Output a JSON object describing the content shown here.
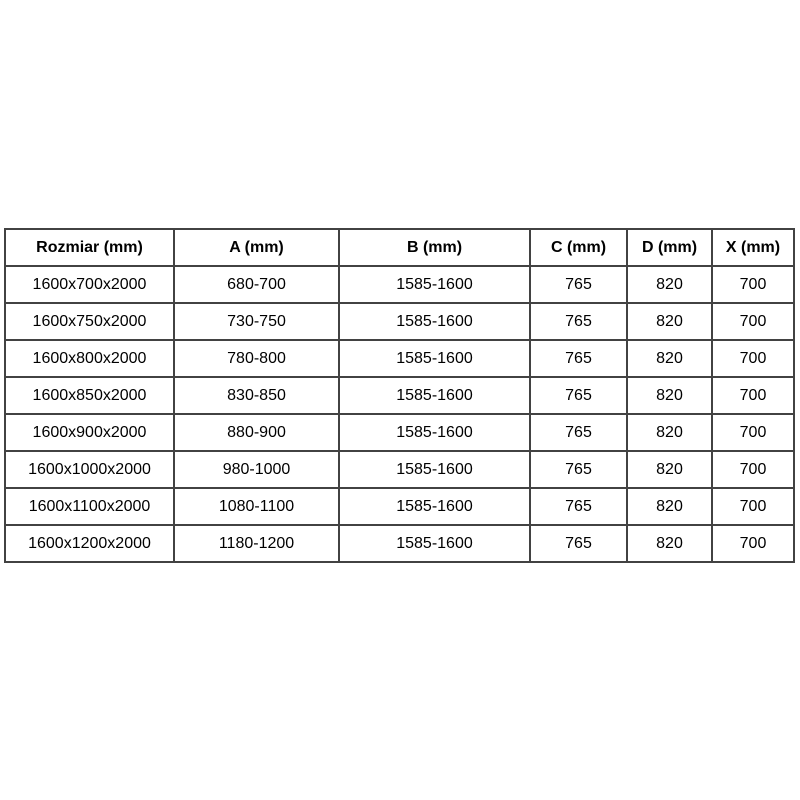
{
  "colors": {
    "background": "#ffffff",
    "border": "#424242",
    "text": "#000000"
  },
  "table": {
    "columns": [
      "Rozmiar (mm)",
      "A (mm)",
      "B (mm)",
      "C (mm)",
      "D (mm)",
      "X (mm)"
    ],
    "rows": [
      [
        "1600x700x2000",
        "680-700",
        "1585-1600",
        "765",
        "820",
        "700"
      ],
      [
        "1600x750x2000",
        "730-750",
        "1585-1600",
        "765",
        "820",
        "700"
      ],
      [
        "1600x800x2000",
        "780-800",
        "1585-1600",
        "765",
        "820",
        "700"
      ],
      [
        "1600x850x2000",
        "830-850",
        "1585-1600",
        "765",
        "820",
        "700"
      ],
      [
        "1600x900x2000",
        "880-900",
        "1585-1600",
        "765",
        "820",
        "700"
      ],
      [
        "1600x1000x2000",
        "980-1000",
        "1585-1600",
        "765",
        "820",
        "700"
      ],
      [
        "1600x1100x2000",
        "1080-1100",
        "1585-1600",
        "765",
        "820",
        "700"
      ],
      [
        "1600x1200x2000",
        "1180-1200",
        "1585-1600",
        "765",
        "820",
        "700"
      ]
    ]
  }
}
